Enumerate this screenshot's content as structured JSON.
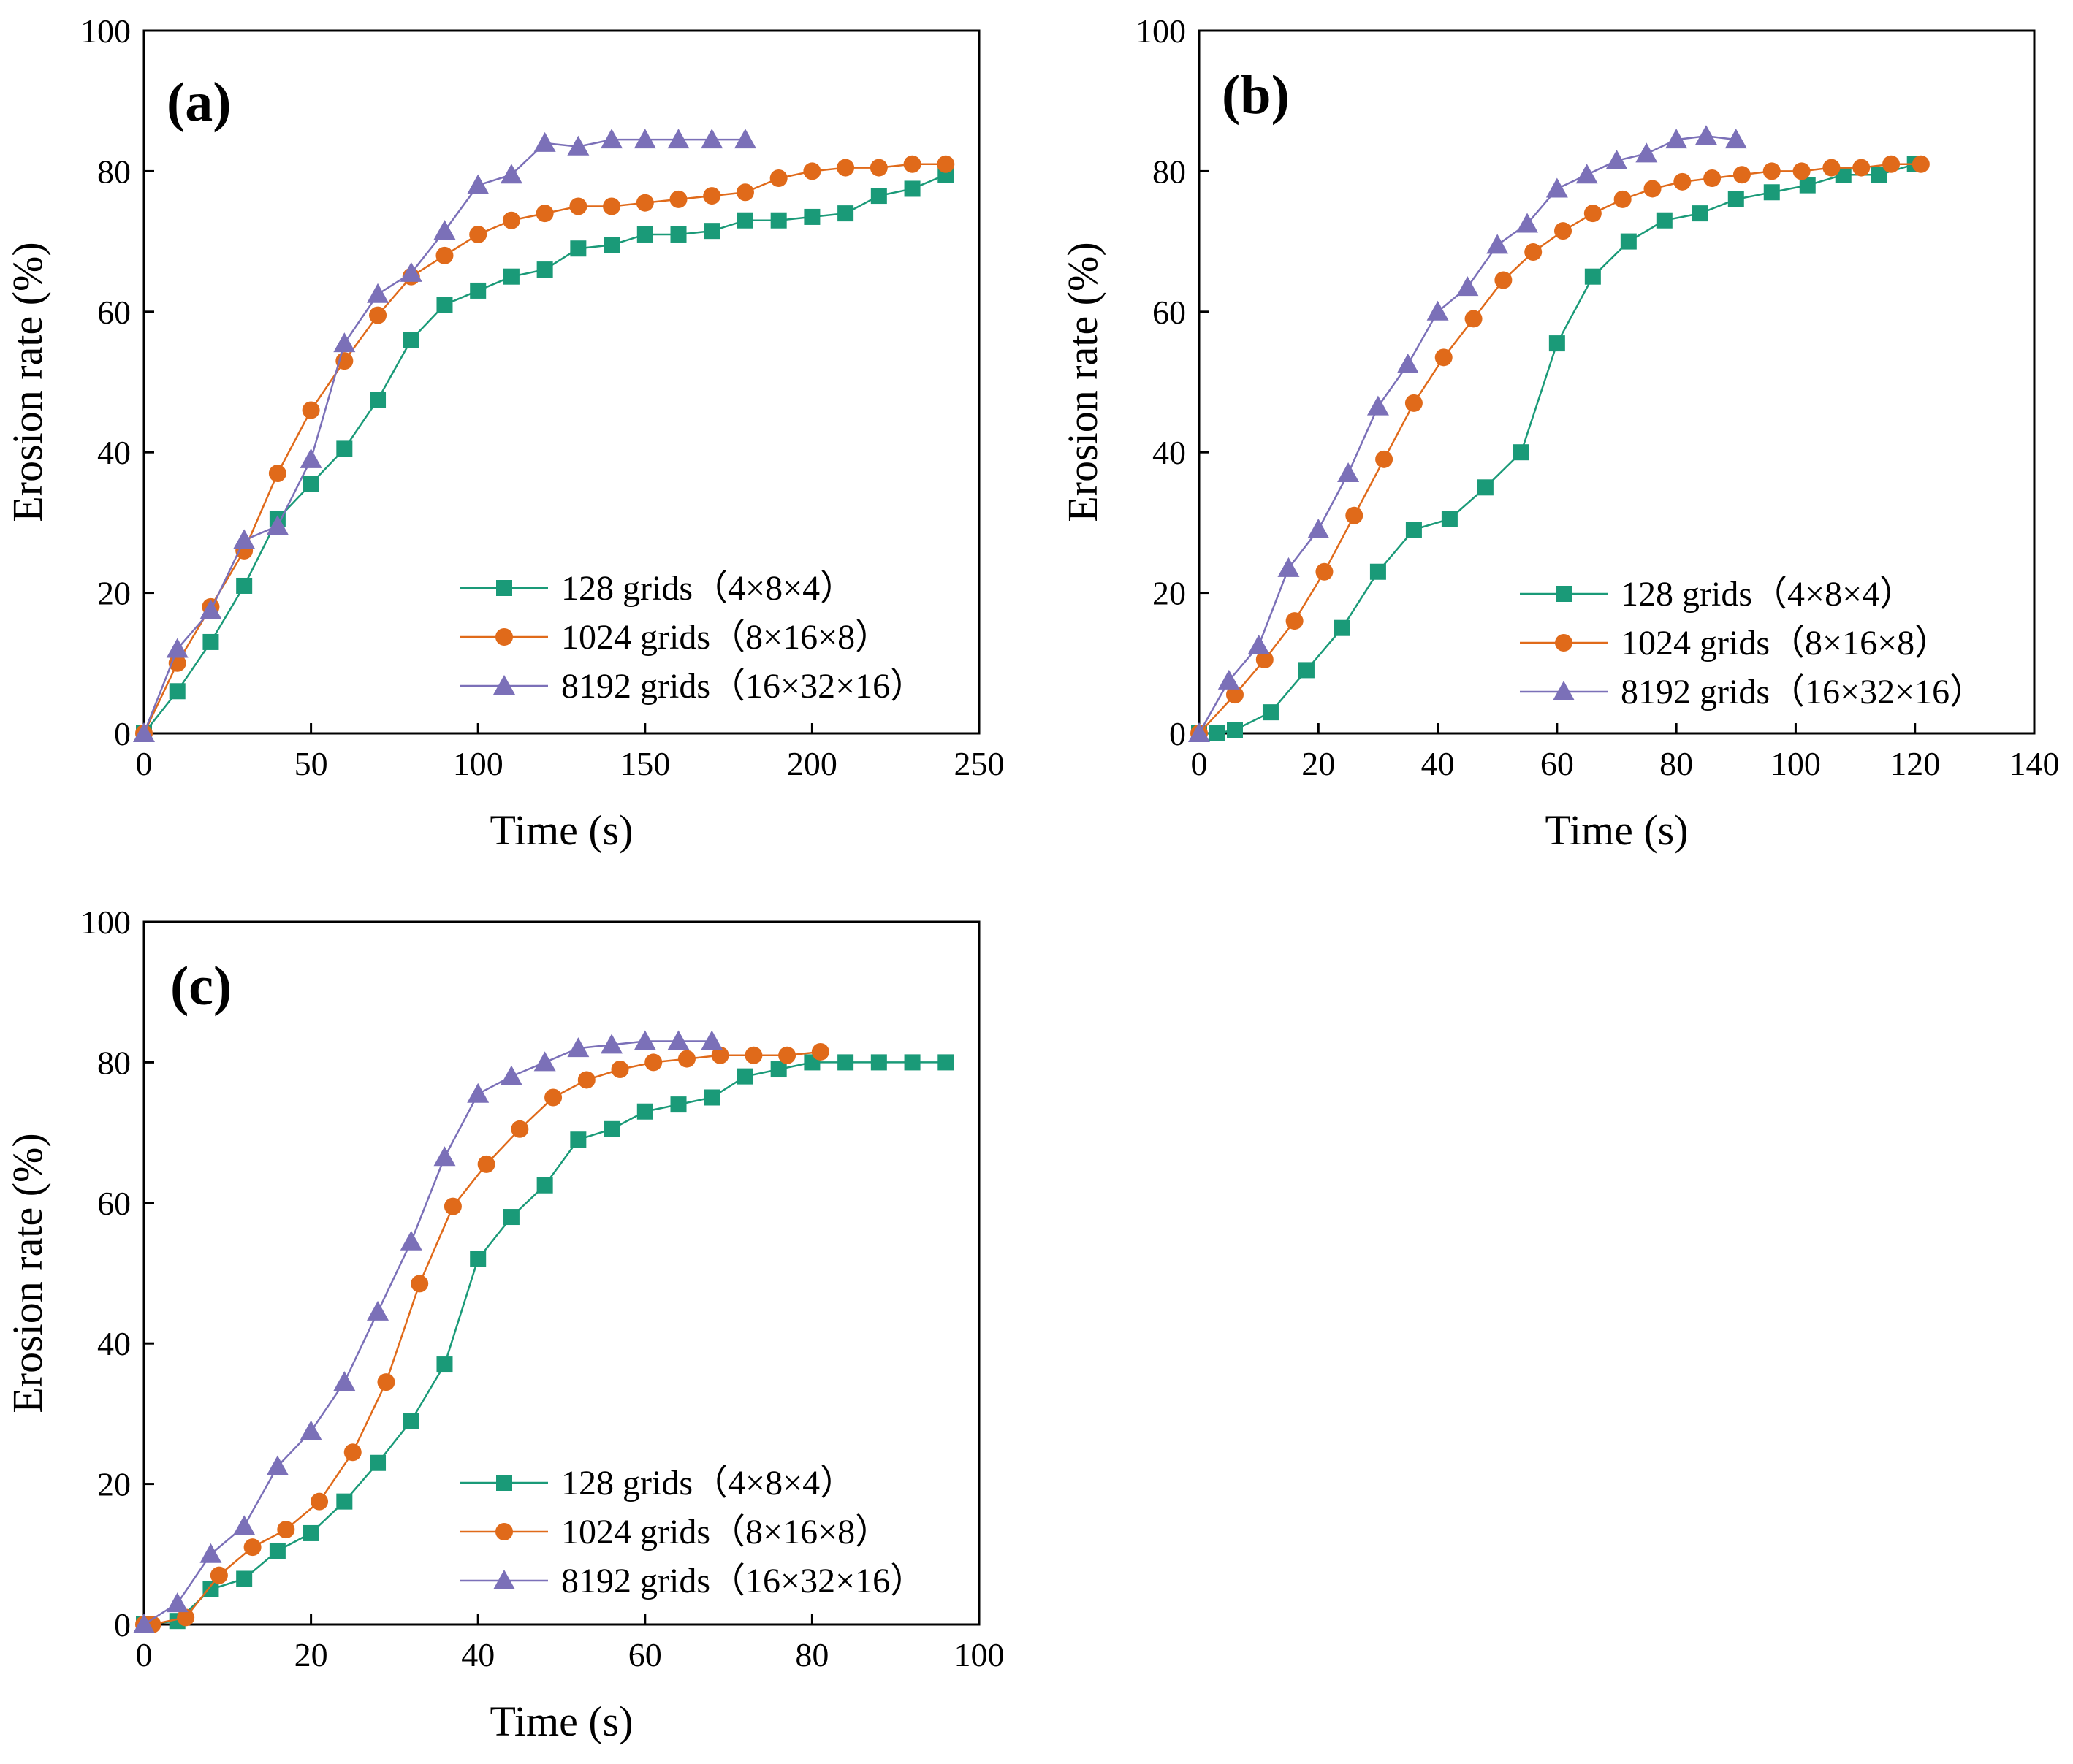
{
  "colors": {
    "green": "#1a9a78",
    "orange": "#e06a1a",
    "purple": "#7b70b8"
  },
  "legend_labels": [
    "128 grids（4×8×4）",
    "1024 grids（8×16×8）",
    "8192 grids（16×32×16）"
  ],
  "chart_data": [
    {
      "type": "line",
      "panel_label": "(a)",
      "xlabel": "Time (s)",
      "ylabel": "Erosion rate (%)",
      "xlim": [
        0,
        250
      ],
      "ylim": [
        0,
        100
      ],
      "xticks": [
        0,
        50,
        100,
        150,
        200,
        250
      ],
      "yticks": [
        0,
        20,
        40,
        60,
        80,
        100
      ],
      "legend_position": "bottom-right",
      "series": [
        {
          "name": "128 grids（4×8×4）",
          "marker": "square",
          "color": "#1a9a78",
          "x": [
            0,
            10,
            20,
            30,
            40,
            50,
            60,
            70,
            80,
            90,
            100,
            110,
            120,
            130,
            140,
            150,
            160,
            170,
            180,
            190,
            200,
            210,
            220,
            230,
            240
          ],
          "y": [
            0,
            6,
            13,
            21,
            30.5,
            35.5,
            40.5,
            47.5,
            56,
            61,
            63,
            65,
            66,
            69,
            69.5,
            71,
            71,
            71.5,
            73,
            73,
            73.5,
            74,
            76.5,
            77.5,
            79.5
          ]
        },
        {
          "name": "1024 grids（8×16×8）",
          "marker": "circle",
          "color": "#e06a1a",
          "x": [
            0,
            10,
            20,
            30,
            40,
            50,
            60,
            70,
            80,
            90,
            100,
            110,
            120,
            130,
            140,
            150,
            160,
            170,
            180,
            190,
            200,
            210,
            220,
            230,
            240
          ],
          "y": [
            0,
            10,
            18,
            26,
            37,
            46,
            53,
            59.5,
            65,
            68,
            71,
            73,
            74,
            75,
            75,
            75.5,
            76,
            76.5,
            77,
            79,
            80,
            80.5,
            80.5,
            81,
            81
          ]
        },
        {
          "name": "8192 grids（16×32×16）",
          "marker": "triangle",
          "color": "#7b70b8",
          "x": [
            0,
            10,
            20,
            30,
            40,
            50,
            60,
            70,
            80,
            90,
            100,
            110,
            120,
            130,
            140,
            150,
            160,
            170,
            180
          ],
          "y": [
            0,
            12,
            17.5,
            27.5,
            29.5,
            39,
            55.5,
            62.5,
            65.5,
            71.5,
            78,
            79.5,
            84,
            83.5,
            84.5,
            84.5,
            84.5,
            84.5,
            84.5
          ]
        }
      ]
    },
    {
      "type": "line",
      "panel_label": "(b)",
      "xlabel": "Time (s)",
      "ylabel": "Erosion rate (%)",
      "xlim": [
        0,
        140
      ],
      "ylim": [
        0,
        100
      ],
      "xticks": [
        0,
        20,
        40,
        60,
        80,
        100,
        120,
        140
      ],
      "yticks": [
        0,
        20,
        40,
        60,
        80,
        100
      ],
      "legend_position": "bottom-right",
      "series": [
        {
          "name": "128 grids（4×8×4）",
          "marker": "square",
          "color": "#1a9a78",
          "x": [
            0,
            3,
            6,
            12,
            18,
            24,
            30,
            36,
            42,
            48,
            54,
            60,
            66,
            72,
            78,
            84,
            90,
            96,
            102,
            108,
            114,
            120
          ],
          "y": [
            0,
            0,
            0.5,
            3,
            9,
            15,
            23,
            29,
            30.5,
            35,
            40,
            55.5,
            65,
            70,
            73,
            74,
            76,
            77,
            78,
            79.5,
            79.5,
            81
          ]
        },
        {
          "name": "1024 grids（8×16×8）",
          "marker": "circle",
          "color": "#e06a1a",
          "x": [
            0,
            6,
            11,
            16,
            21,
            26,
            31,
            36,
            41,
            46,
            51,
            56,
            61,
            66,
            71,
            76,
            81,
            86,
            91,
            96,
            101,
            106,
            111,
            116,
            121
          ],
          "y": [
            0,
            5.5,
            10.5,
            16,
            23,
            31,
            39,
            47,
            53.5,
            59,
            64.5,
            68.5,
            71.5,
            74,
            76,
            77.5,
            78.5,
            79,
            79.5,
            80,
            80,
            80.5,
            80.5,
            81,
            81
          ]
        },
        {
          "name": "8192 grids（16×32×16）",
          "marker": "triangle",
          "color": "#7b70b8",
          "x": [
            0,
            5,
            10,
            15,
            20,
            25,
            30,
            35,
            40,
            45,
            50,
            55,
            60,
            65,
            70,
            75,
            80,
            85,
            90
          ],
          "y": [
            0,
            7.5,
            12.5,
            23.5,
            29,
            37,
            46.5,
            52.5,
            60,
            63.5,
            69.5,
            72.5,
            77.5,
            79.5,
            81.5,
            82.5,
            84.5,
            85,
            84.5
          ]
        }
      ]
    },
    {
      "type": "line",
      "panel_label": "(c)",
      "xlabel": "Time (s)",
      "ylabel": "Erosion rate (%)",
      "xlim": [
        0,
        100
      ],
      "ylim": [
        0,
        100
      ],
      "xticks": [
        0,
        20,
        40,
        60,
        80,
        100
      ],
      "yticks": [
        0,
        20,
        40,
        60,
        80,
        100
      ],
      "legend_position": "bottom-right",
      "series": [
        {
          "name": "128 grids（4×8×4）",
          "marker": "square",
          "color": "#1a9a78",
          "x": [
            0,
            4,
            8,
            12,
            16,
            20,
            24,
            28,
            32,
            36,
            40,
            44,
            48,
            52,
            56,
            60,
            64,
            68,
            72,
            76,
            80,
            84,
            88,
            92,
            96
          ],
          "y": [
            0,
            0.5,
            5,
            6.5,
            10.5,
            13,
            17.5,
            23,
            29,
            37,
            52,
            58,
            62.5,
            69,
            70.5,
            73,
            74,
            75,
            78,
            79,
            80,
            80,
            80,
            80,
            80
          ]
        },
        {
          "name": "1024 grids（8×16×8）",
          "marker": "circle",
          "color": "#e06a1a",
          "x": [
            0,
            1,
            5,
            9,
            13,
            17,
            21,
            25,
            29,
            33,
            37,
            41,
            45,
            49,
            53,
            57,
            61,
            65,
            69,
            73,
            77,
            81
          ],
          "y": [
            0,
            0,
            1,
            7,
            11,
            13.5,
            17.5,
            24.5,
            34.5,
            48.5,
            59.5,
            65.5,
            70.5,
            75,
            77.5,
            79,
            80,
            80.5,
            81,
            81,
            81,
            81.5
          ]
        },
        {
          "name": "8192 grids（16×32×16）",
          "marker": "triangle",
          "color": "#7b70b8",
          "x": [
            0,
            4,
            8,
            12,
            16,
            20,
            24,
            28,
            32,
            36,
            40,
            44,
            48,
            52,
            56,
            60,
            64,
            68
          ],
          "y": [
            0,
            3,
            10,
            14,
            22.5,
            27.5,
            34.5,
            44.5,
            54.5,
            66.5,
            75.5,
            78,
            80,
            82,
            82.5,
            83,
            83,
            83
          ]
        }
      ]
    }
  ]
}
